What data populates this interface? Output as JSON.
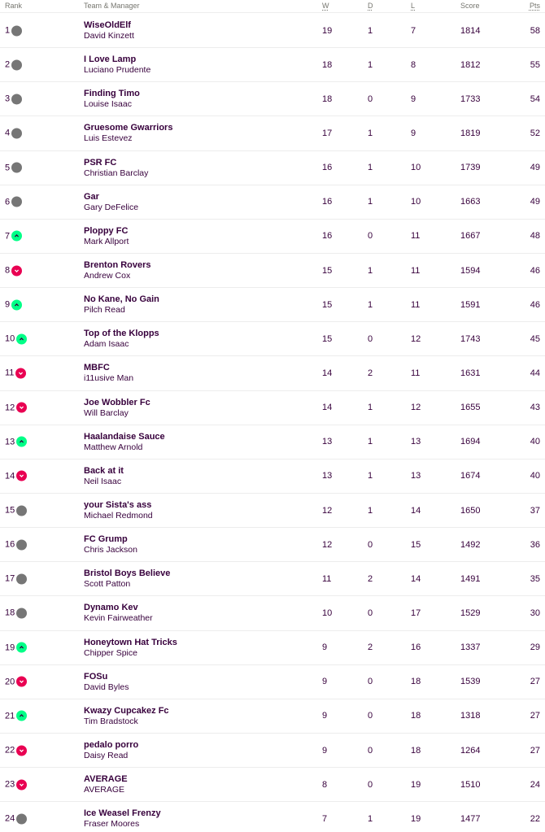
{
  "header": {
    "rank": "Rank",
    "team_manager": "Team & Manager",
    "w": "W",
    "d": "D",
    "l": "L",
    "score": "Score",
    "pts": "Pts"
  },
  "colors": {
    "up": "#00ff87",
    "down": "#e90052",
    "same": "#767676",
    "text": "#37003c"
  },
  "rows": [
    {
      "rank": "1",
      "movement": "same",
      "team": "WiseOldElf",
      "manager": "David Kinzett",
      "w": "19",
      "d": "1",
      "l": "7",
      "score": "1814",
      "pts": "58"
    },
    {
      "rank": "2",
      "movement": "same",
      "team": "I Love Lamp",
      "manager": "Luciano Prudente",
      "w": "18",
      "d": "1",
      "l": "8",
      "score": "1812",
      "pts": "55"
    },
    {
      "rank": "3",
      "movement": "same",
      "team": "Finding Timo",
      "manager": "Louise Isaac",
      "w": "18",
      "d": "0",
      "l": "9",
      "score": "1733",
      "pts": "54"
    },
    {
      "rank": "4",
      "movement": "same",
      "team": "Gruesome Gwarriors",
      "manager": "Luis Estevez",
      "w": "17",
      "d": "1",
      "l": "9",
      "score": "1819",
      "pts": "52"
    },
    {
      "rank": "5",
      "movement": "same",
      "team": "PSR FC",
      "manager": "Christian Barclay",
      "w": "16",
      "d": "1",
      "l": "10",
      "score": "1739",
      "pts": "49"
    },
    {
      "rank": "6",
      "movement": "same",
      "team": "Gar",
      "manager": "Gary DeFelice",
      "w": "16",
      "d": "1",
      "l": "10",
      "score": "1663",
      "pts": "49"
    },
    {
      "rank": "7",
      "movement": "up",
      "team": "Ploppy FC",
      "manager": "Mark Allport",
      "w": "16",
      "d": "0",
      "l": "11",
      "score": "1667",
      "pts": "48"
    },
    {
      "rank": "8",
      "movement": "down",
      "team": "Brenton Rovers",
      "manager": "Andrew Cox",
      "w": "15",
      "d": "1",
      "l": "11",
      "score": "1594",
      "pts": "46"
    },
    {
      "rank": "9",
      "movement": "up",
      "team": "No Kane, No Gain",
      "manager": "Pilch Read",
      "w": "15",
      "d": "1",
      "l": "11",
      "score": "1591",
      "pts": "46"
    },
    {
      "rank": "10",
      "movement": "up",
      "team": "Top of the Klopps",
      "manager": "Adam Isaac",
      "w": "15",
      "d": "0",
      "l": "12",
      "score": "1743",
      "pts": "45"
    },
    {
      "rank": "11",
      "movement": "down",
      "team": "MBFC",
      "manager": "i11usive Man",
      "w": "14",
      "d": "2",
      "l": "11",
      "score": "1631",
      "pts": "44"
    },
    {
      "rank": "12",
      "movement": "down",
      "team": "Joe Wobbler Fc",
      "manager": "Will Barclay",
      "w": "14",
      "d": "1",
      "l": "12",
      "score": "1655",
      "pts": "43"
    },
    {
      "rank": "13",
      "movement": "up",
      "team": "Haalandaise Sauce",
      "manager": "Matthew Arnold",
      "w": "13",
      "d": "1",
      "l": "13",
      "score": "1694",
      "pts": "40"
    },
    {
      "rank": "14",
      "movement": "down",
      "team": "Back at it",
      "manager": "Neil Isaac",
      "w": "13",
      "d": "1",
      "l": "13",
      "score": "1674",
      "pts": "40"
    },
    {
      "rank": "15",
      "movement": "same",
      "team": "your Sista's ass",
      "manager": "Michael Redmond",
      "w": "12",
      "d": "1",
      "l": "14",
      "score": "1650",
      "pts": "37"
    },
    {
      "rank": "16",
      "movement": "same",
      "team": "FC Grump",
      "manager": "Chris Jackson",
      "w": "12",
      "d": "0",
      "l": "15",
      "score": "1492",
      "pts": "36"
    },
    {
      "rank": "17",
      "movement": "same",
      "team": "Bristol Boys Believe",
      "manager": "Scott Patton",
      "w": "11",
      "d": "2",
      "l": "14",
      "score": "1491",
      "pts": "35"
    },
    {
      "rank": "18",
      "movement": "same",
      "team": "Dynamo Kev",
      "manager": "Kevin Fairweather",
      "w": "10",
      "d": "0",
      "l": "17",
      "score": "1529",
      "pts": "30"
    },
    {
      "rank": "19",
      "movement": "up",
      "team": "Honeytown Hat Tricks",
      "manager": "Chipper Spice",
      "w": "9",
      "d": "2",
      "l": "16",
      "score": "1337",
      "pts": "29"
    },
    {
      "rank": "20",
      "movement": "down",
      "team": "FOSu",
      "manager": "David Byles",
      "w": "9",
      "d": "0",
      "l": "18",
      "score": "1539",
      "pts": "27"
    },
    {
      "rank": "21",
      "movement": "up",
      "team": "Kwazy Cupcakez Fc",
      "manager": "Tim Bradstock",
      "w": "9",
      "d": "0",
      "l": "18",
      "score": "1318",
      "pts": "27"
    },
    {
      "rank": "22",
      "movement": "down",
      "team": "pedalo porro",
      "manager": "Daisy Read",
      "w": "9",
      "d": "0",
      "l": "18",
      "score": "1264",
      "pts": "27"
    },
    {
      "rank": "23",
      "movement": "down",
      "team": "AVERAGE",
      "manager": "AVERAGE",
      "w": "8",
      "d": "0",
      "l": "19",
      "score": "1510",
      "pts": "24"
    },
    {
      "rank": "24",
      "movement": "same",
      "team": "Ice Weasel Frenzy",
      "manager": "Fraser Moores",
      "w": "7",
      "d": "1",
      "l": "19",
      "score": "1477",
      "pts": "22"
    }
  ]
}
